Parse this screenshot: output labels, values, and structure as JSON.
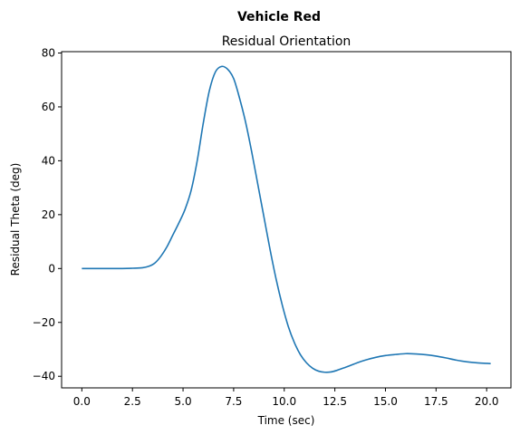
{
  "suptitle": "Vehicle Red",
  "chart_data": {
    "type": "line",
    "title": "Residual Orientation",
    "xlabel": "Time (sec)",
    "ylabel": "Residual Theta (deg)",
    "xlim": [
      -1.0,
      21.2
    ],
    "ylim": [
      -44.3,
      80.5
    ],
    "xticks": [
      0.0,
      2.5,
      5.0,
      7.5,
      10.0,
      12.5,
      15.0,
      17.5,
      20.0
    ],
    "xtick_labels": [
      "0.0",
      "2.5",
      "5.0",
      "7.5",
      "10.0",
      "12.5",
      "15.0",
      "17.5",
      "20.0"
    ],
    "yticks": [
      -40,
      -20,
      0,
      20,
      40,
      60,
      80
    ],
    "ytick_labels": [
      "−40",
      "−20",
      "0",
      "20",
      "40",
      "60",
      "80"
    ],
    "grid": false,
    "legend": false,
    "series": [
      {
        "color": "#1f77b4",
        "x": [
          0.0,
          1.0,
          2.0,
          2.5,
          3.0,
          3.3,
          3.6,
          3.9,
          4.2,
          4.5,
          4.8,
          5.1,
          5.4,
          5.7,
          6.0,
          6.3,
          6.6,
          6.9,
          7.2,
          7.5,
          7.8,
          8.1,
          8.4,
          8.7,
          9.0,
          9.3,
          9.6,
          9.9,
          10.2,
          10.5,
          10.8,
          11.1,
          11.4,
          11.7,
          12.0,
          12.3,
          12.6,
          12.9,
          13.2,
          13.6,
          14.0,
          14.5,
          15.0,
          15.5,
          16.0,
          16.5,
          17.0,
          17.5,
          18.0,
          18.5,
          19.0,
          19.5,
          20.0,
          20.2
        ],
        "values": [
          0.0,
          0.0,
          0.0,
          0.1,
          0.3,
          0.8,
          2.0,
          4.5,
          8.0,
          12.5,
          17.0,
          22.0,
          29.0,
          40.0,
          54.0,
          66.0,
          73.0,
          75.0,
          74.0,
          70.5,
          63.0,
          54.0,
          43.0,
          31.0,
          19.0,
          7.0,
          -4.0,
          -13.5,
          -21.5,
          -27.5,
          -32.0,
          -35.0,
          -37.0,
          -38.1,
          -38.5,
          -38.4,
          -37.8,
          -37.0,
          -36.2,
          -35.0,
          -34.0,
          -33.0,
          -32.3,
          -31.9,
          -31.6,
          -31.7,
          -32.0,
          -32.5,
          -33.2,
          -34.0,
          -34.6,
          -35.0,
          -35.2,
          -35.3
        ]
      }
    ]
  }
}
